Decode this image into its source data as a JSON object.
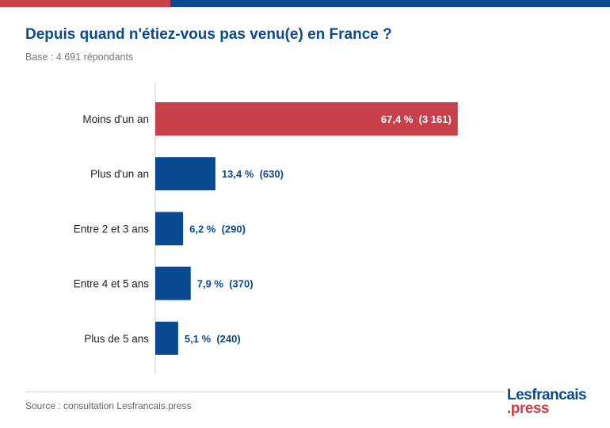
{
  "title": "Depuis quand n'étiez-vous pas venu(e) en France ?",
  "subtitle": "Base : 4 691 répondants",
  "source": "Source : consultation Lesfrancais.press",
  "logo": {
    "line1": "Lesfrancais",
    "line2": ".press"
  },
  "colors": {
    "red": "#c8404a",
    "blue": "#0a4a91",
    "value_on_red": "#ffffff"
  },
  "chart_data": {
    "type": "bar",
    "orientation": "horizontal",
    "categories": [
      "Moins d'un an",
      "Plus d'un an",
      "Entre 2 et 3 ans",
      "Entre 4 et 5 ans",
      "Plus de 5 ans"
    ],
    "values": [
      67.4,
      13.4,
      6.2,
      7.9,
      5.1
    ],
    "counts": [
      3161,
      630,
      290,
      370,
      240
    ],
    "labels": [
      "67,4 %  (3 161)",
      "13,4 %  (630)",
      "6,2 %  (290)",
      "7,9 %  (370)",
      "5,1 %  (240)"
    ],
    "highlight_index": 0,
    "xlim": [
      0,
      100
    ],
    "title": "Depuis quand n'étiez-vous pas venu(e) en France ?",
    "xlabel": "",
    "ylabel": "",
    "grid": false
  }
}
